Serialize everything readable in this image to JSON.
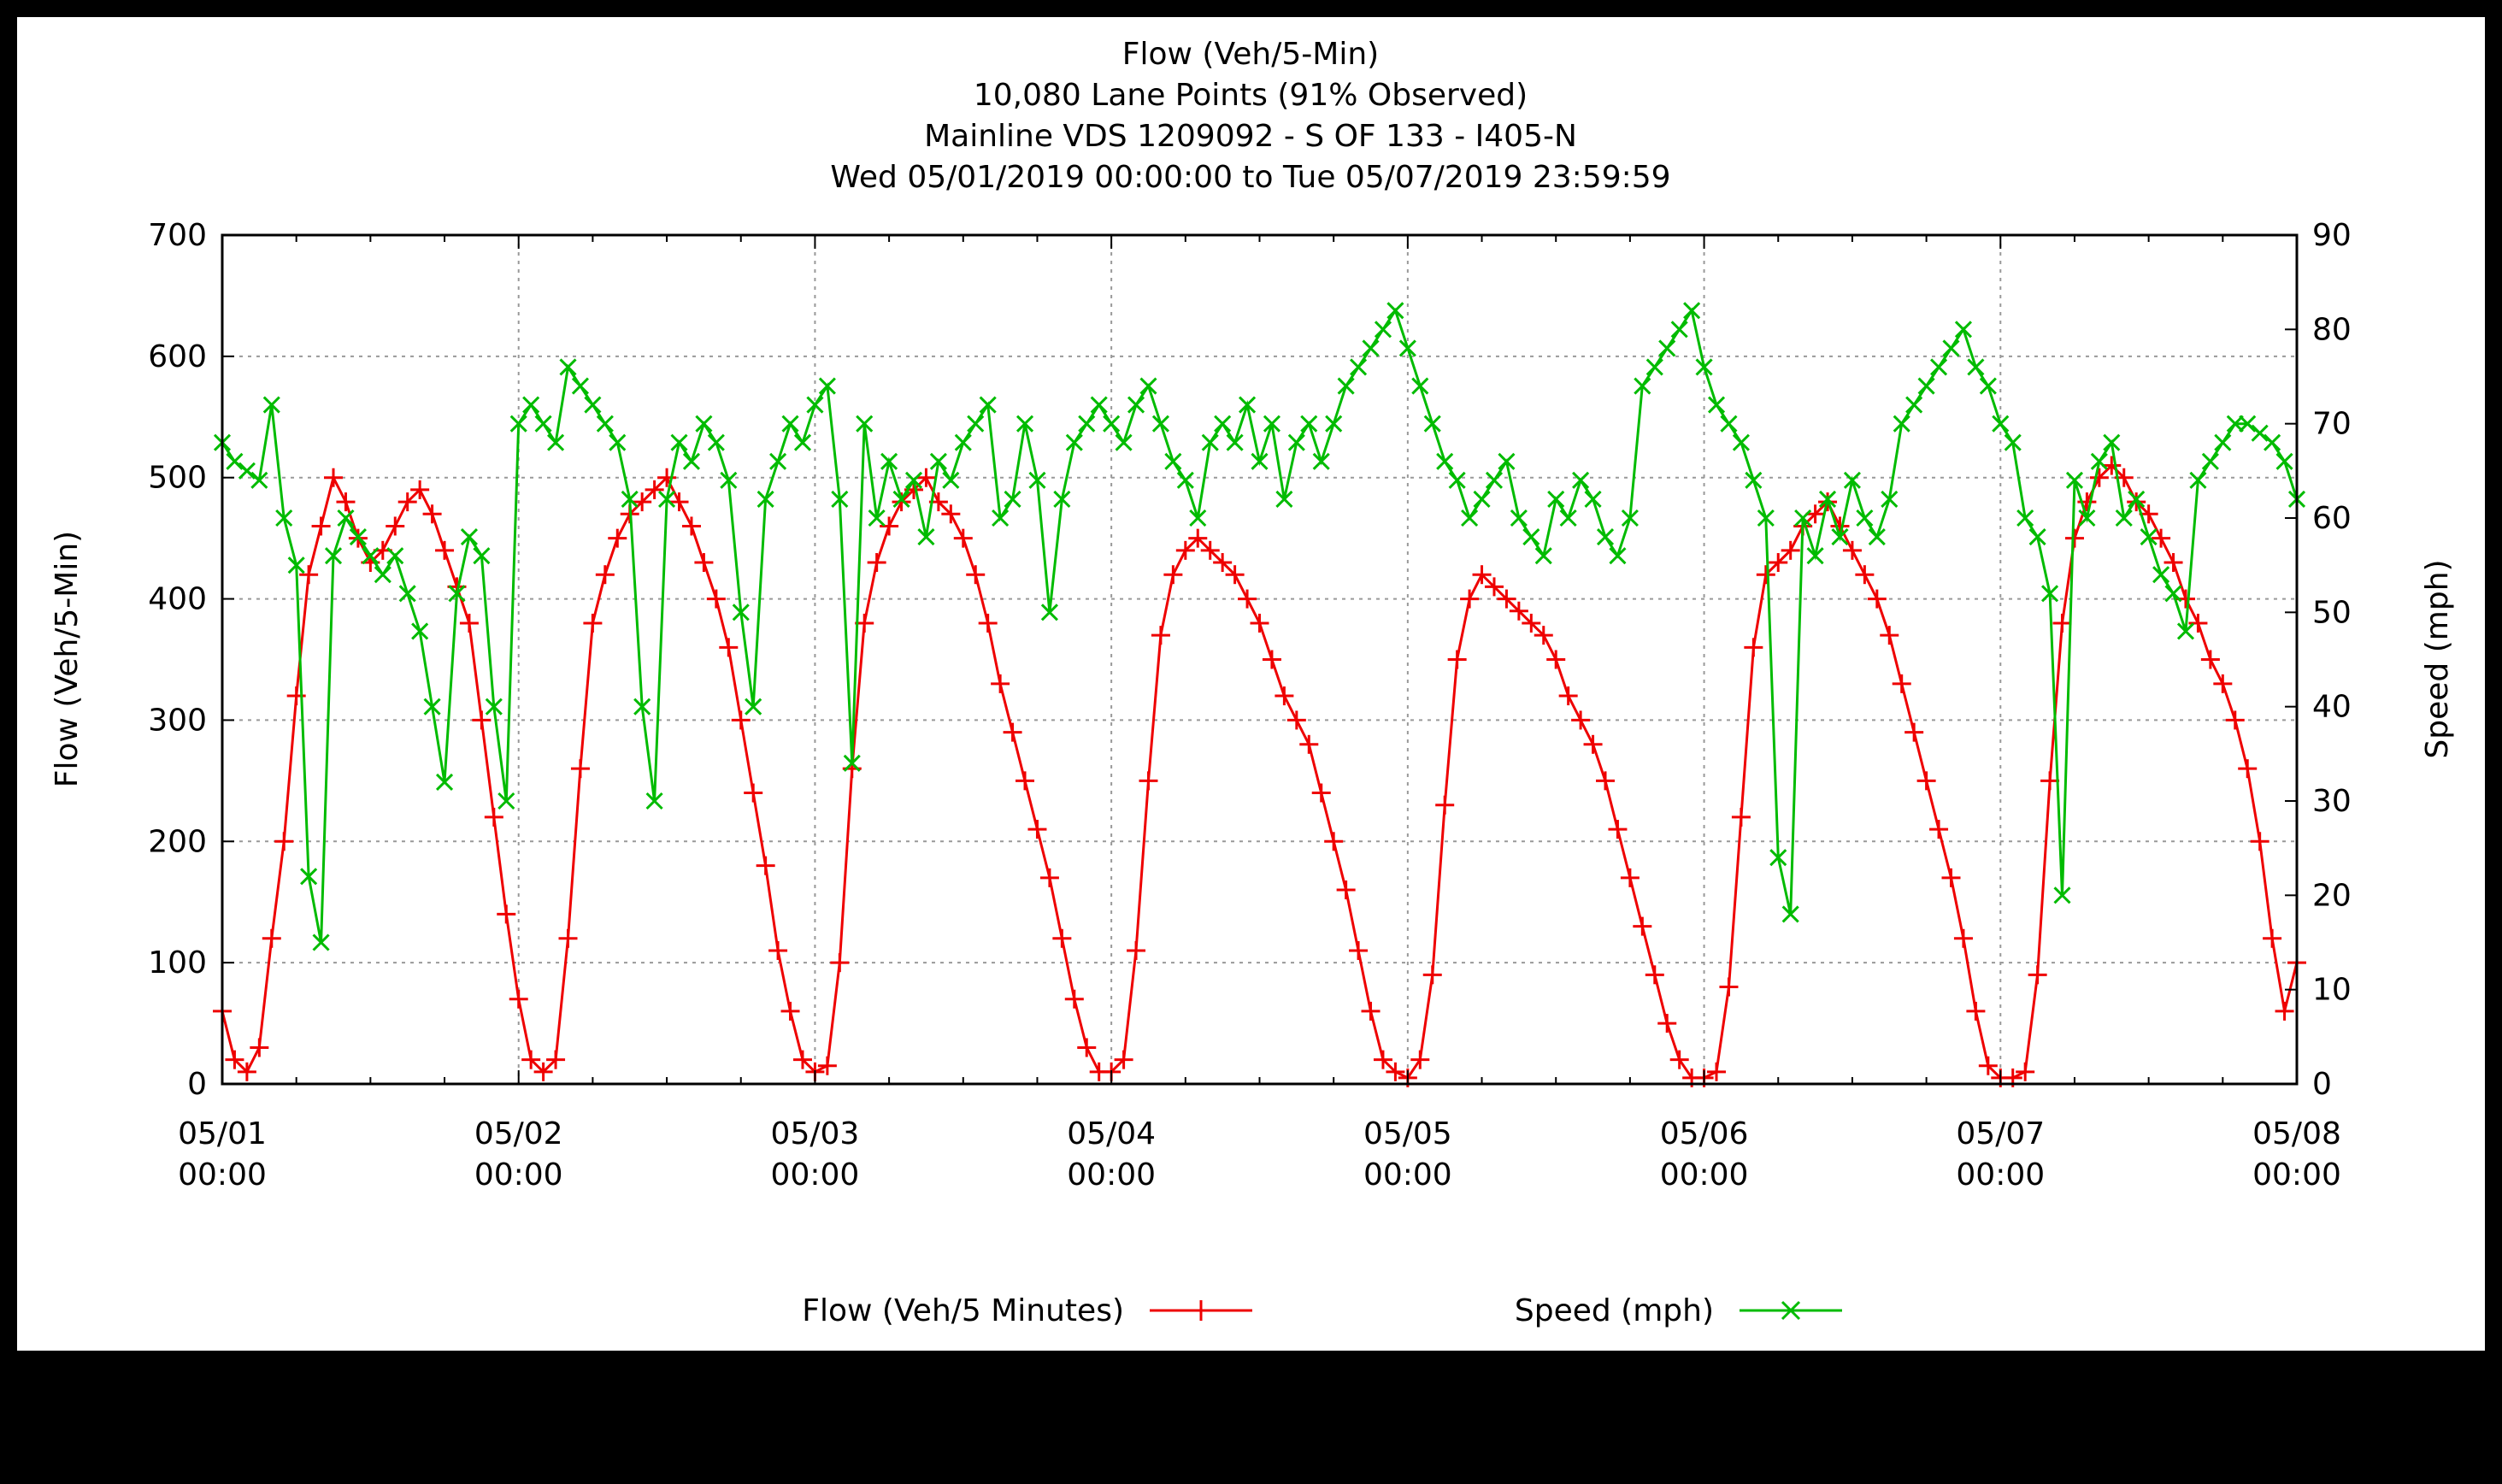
{
  "chart_data": {
    "type": "line",
    "title_lines": [
      "Flow (Veh/5-Min)",
      "10,080 Lane Points (91% Observed)",
      "Mainline VDS 1209092 - S OF 133 - I405-N",
      "Wed 05/01/2019 00:00:00 to Tue 05/07/2019 23:59:59"
    ],
    "ylabel_left": "Flow (Veh/5-Min)",
    "ylabel_right": "Speed (mph)",
    "y_left_range": [
      0,
      700
    ],
    "y_left_ticks": [
      0,
      100,
      200,
      300,
      400,
      500,
      600,
      700
    ],
    "y_right_range": [
      0,
      90
    ],
    "y_right_ticks": [
      0,
      10,
      20,
      30,
      40,
      50,
      60,
      70,
      80,
      90
    ],
    "x_range_hours": [
      0,
      168
    ],
    "x_ticks": [
      {
        "hour": 0,
        "date": "05/01",
        "time": "00:00"
      },
      {
        "hour": 24,
        "date": "05/02",
        "time": "00:00"
      },
      {
        "hour": 48,
        "date": "05/03",
        "time": "00:00"
      },
      {
        "hour": 72,
        "date": "05/04",
        "time": "00:00"
      },
      {
        "hour": 96,
        "date": "05/05",
        "time": "00:00"
      },
      {
        "hour": 120,
        "date": "05/06",
        "time": "00:00"
      },
      {
        "hour": 144,
        "date": "05/07",
        "time": "00:00"
      },
      {
        "hour": 168,
        "date": "05/08",
        "time": "00:00"
      }
    ],
    "grid": true,
    "legend_position": "bottom",
    "series": [
      {
        "name": "Flow (Veh/5 Minutes)",
        "axis": "left",
        "color": "#ee0000",
        "marker": "+",
        "x_hours": [
          0,
          1,
          2,
          3,
          4,
          5,
          6,
          7,
          8,
          9,
          10,
          11,
          12,
          13,
          14,
          15,
          16,
          17,
          18,
          19,
          20,
          21,
          22,
          23,
          24,
          25,
          26,
          27,
          28,
          29,
          30,
          31,
          32,
          33,
          34,
          35,
          36,
          37,
          38,
          39,
          40,
          41,
          42,
          43,
          44,
          45,
          46,
          47,
          48,
          49,
          50,
          51,
          52,
          53,
          54,
          55,
          56,
          57,
          58,
          59,
          60,
          61,
          62,
          63,
          64,
          65,
          66,
          67,
          68,
          69,
          70,
          71,
          72,
          73,
          74,
          75,
          76,
          77,
          78,
          79,
          80,
          81,
          82,
          83,
          84,
          85,
          86,
          87,
          88,
          89,
          90,
          91,
          92,
          93,
          94,
          95,
          96,
          97,
          98,
          99,
          100,
          101,
          102,
          103,
          104,
          105,
          106,
          107,
          108,
          109,
          110,
          111,
          112,
          113,
          114,
          115,
          116,
          117,
          118,
          119,
          120,
          121,
          122,
          123,
          124,
          125,
          126,
          127,
          128,
          129,
          130,
          131,
          132,
          133,
          134,
          135,
          136,
          137,
          138,
          139,
          140,
          141,
          142,
          143,
          144,
          145,
          146,
          147,
          148,
          149,
          150,
          151,
          152,
          153,
          154,
          155,
          156,
          157,
          158,
          159,
          160,
          161,
          162,
          163,
          164,
          165,
          166,
          167,
          168
        ],
        "values": [
          60,
          20,
          10,
          30,
          120,
          200,
          320,
          420,
          460,
          500,
          480,
          450,
          430,
          440,
          460,
          480,
          490,
          470,
          440,
          410,
          380,
          300,
          220,
          140,
          70,
          20,
          10,
          20,
          120,
          260,
          380,
          420,
          450,
          470,
          480,
          490,
          500,
          480,
          460,
          430,
          400,
          360,
          300,
          240,
          180,
          110,
          60,
          20,
          10,
          15,
          100,
          260,
          380,
          430,
          460,
          480,
          490,
          500,
          480,
          470,
          450,
          420,
          380,
          330,
          290,
          250,
          210,
          170,
          120,
          70,
          30,
          10,
          10,
          20,
          110,
          250,
          370,
          420,
          440,
          450,
          440,
          430,
          420,
          400,
          380,
          350,
          320,
          300,
          280,
          240,
          200,
          160,
          110,
          60,
          20,
          10,
          5,
          20,
          90,
          230,
          350,
          400,
          420,
          410,
          400,
          390,
          380,
          370,
          350,
          320,
          300,
          280,
          250,
          210,
          170,
          130,
          90,
          50,
          20,
          5,
          5,
          10,
          80,
          220,
          360,
          420,
          430,
          440,
          460,
          470,
          480,
          460,
          440,
          420,
          400,
          370,
          330,
          290,
          250,
          210,
          170,
          120,
          60,
          15,
          5,
          5,
          10,
          90,
          250,
          380,
          450,
          480,
          500,
          510,
          500,
          480,
          470,
          450,
          430,
          400,
          380,
          350,
          330,
          300,
          260,
          200,
          120,
          60,
          100
        ]
      },
      {
        "name": "Speed (mph)",
        "axis": "right",
        "color": "#00bb00",
        "marker": "x",
        "x_hours": [
          0,
          1,
          2,
          3,
          4,
          5,
          6,
          7,
          8,
          9,
          10,
          11,
          12,
          13,
          14,
          15,
          16,
          17,
          18,
          19,
          20,
          21,
          22,
          23,
          24,
          25,
          26,
          27,
          28,
          29,
          30,
          31,
          32,
          33,
          34,
          35,
          36,
          37,
          38,
          39,
          40,
          41,
          42,
          43,
          44,
          45,
          46,
          47,
          48,
          49,
          50,
          51,
          52,
          53,
          54,
          55,
          56,
          57,
          58,
          59,
          60,
          61,
          62,
          63,
          64,
          65,
          66,
          67,
          68,
          69,
          70,
          71,
          72,
          73,
          74,
          75,
          76,
          77,
          78,
          79,
          80,
          81,
          82,
          83,
          84,
          85,
          86,
          87,
          88,
          89,
          90,
          91,
          92,
          93,
          94,
          95,
          96,
          97,
          98,
          99,
          100,
          101,
          102,
          103,
          104,
          105,
          106,
          107,
          108,
          109,
          110,
          111,
          112,
          113,
          114,
          115,
          116,
          117,
          118,
          119,
          120,
          121,
          122,
          123,
          124,
          125,
          126,
          127,
          128,
          129,
          130,
          131,
          132,
          133,
          134,
          135,
          136,
          137,
          138,
          139,
          140,
          141,
          142,
          143,
          144,
          145,
          146,
          147,
          148,
          149,
          150,
          151,
          152,
          153,
          154,
          155,
          156,
          157,
          158,
          159,
          160,
          161,
          162,
          163,
          164,
          165,
          166,
          167,
          168
        ],
        "values": [
          68,
          66,
          65,
          64,
          72,
          60,
          55,
          22,
          15,
          56,
          60,
          58,
          56,
          54,
          56,
          52,
          48,
          40,
          32,
          52,
          58,
          56,
          40,
          30,
          70,
          72,
          70,
          68,
          76,
          74,
          72,
          70,
          68,
          62,
          40,
          30,
          62,
          68,
          66,
          70,
          68,
          64,
          50,
          40,
          62,
          66,
          70,
          68,
          72,
          74,
          62,
          34,
          70,
          60,
          66,
          62,
          64,
          58,
          66,
          64,
          68,
          70,
          72,
          60,
          62,
          70,
          64,
          50,
          62,
          68,
          70,
          72,
          70,
          68,
          72,
          74,
          70,
          66,
          64,
          60,
          68,
          70,
          68,
          72,
          66,
          70,
          62,
          68,
          70,
          66,
          70,
          74,
          76,
          78,
          80,
          82,
          78,
          74,
          70,
          66,
          64,
          60,
          62,
          64,
          66,
          60,
          58,
          56,
          62,
          60,
          64,
          62,
          58,
          56,
          60,
          74,
          76,
          78,
          80,
          82,
          76,
          72,
          70,
          68,
          64,
          60,
          24,
          18,
          60,
          56,
          62,
          58,
          64,
          60,
          58,
          62,
          70,
          72,
          74,
          76,
          78,
          80,
          76,
          74,
          70,
          68,
          60,
          58,
          52,
          20,
          64,
          60,
          66,
          68,
          60,
          62,
          58,
          54,
          52,
          48,
          64,
          66,
          68,
          70,
          70,
          69,
          68,
          66,
          62
        ]
      }
    ]
  }
}
